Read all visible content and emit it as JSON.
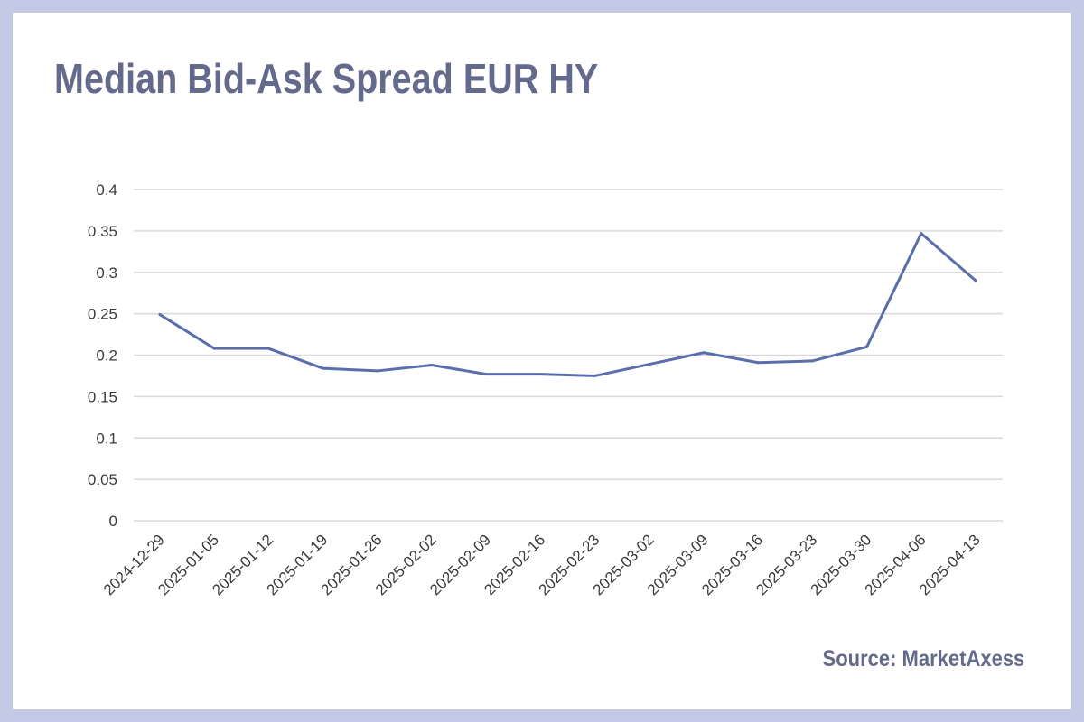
{
  "title": "Median Bid-Ask Spread EUR HY",
  "source": "Source: MarketAxess",
  "colors": {
    "background_frame": "#c3c8e5",
    "card": "#ffffff",
    "title_text": "#646a8c",
    "line": "#5a6eab",
    "grid": "#d9d9d9",
    "tick_text": "#3a3a3a"
  },
  "chart_data": {
    "type": "line",
    "title": "Median Bid-Ask Spread EUR HY",
    "xlabel": "",
    "ylabel": "",
    "categories": [
      "2024-12-29",
      "2025-01-05",
      "2025-01-12",
      "2025-01-19",
      "2025-01-26",
      "2025-02-02",
      "2025-02-09",
      "2025-02-16",
      "2025-02-23",
      "2025-03-02",
      "2025-03-09",
      "2025-03-16",
      "2025-03-23",
      "2025-03-30",
      "2025-04-06",
      "2025-04-13"
    ],
    "series": [
      {
        "values": [
          0.249,
          0.208,
          0.208,
          0.184,
          0.181,
          0.188,
          0.177,
          0.177,
          0.175,
          0.189,
          0.203,
          0.191,
          0.193,
          0.21,
          0.347,
          0.29
        ]
      }
    ],
    "ylim": [
      0,
      0.4
    ],
    "yticks": [
      "0",
      "0.05",
      "0.1",
      "0.15",
      "0.2",
      "0.25",
      "0.3",
      "0.35",
      "0.4"
    ],
    "ytick_values": [
      0,
      0.05,
      0.1,
      0.15,
      0.2,
      0.25,
      0.3,
      0.35,
      0.4
    ],
    "grid": true,
    "legend": "none"
  }
}
